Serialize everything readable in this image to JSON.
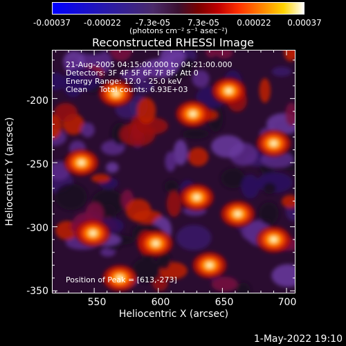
{
  "colorbar": {
    "ticks": [
      "-0.00037",
      "-0.00022",
      "-7.3e-05",
      "7.3e-05",
      "0.00022",
      "0.00037"
    ],
    "unit_label": "(photons cm⁻² s⁻¹ asec⁻²)"
  },
  "chart_data": {
    "type": "heatmap",
    "title": "Reconstructed RHESSI Image",
    "xlabel": "Heliocentric X (arcsec)",
    "ylabel": "Heliocentric Y (arcsec)",
    "xlim": [
      517,
      707
    ],
    "ylim": [
      -352,
      -162
    ],
    "x_ticks": [
      "550",
      "600",
      "650",
      "700"
    ],
    "y_ticks": [
      "-200",
      "-250",
      "-300",
      "-350"
    ],
    "peak_position": [
      613,
      -273
    ],
    "bright_sources": [
      {
        "x": 567,
        "y": -196
      },
      {
        "x": 655,
        "y": -194
      },
      {
        "x": 627,
        "y": -212
      },
      {
        "x": 540,
        "y": -250
      },
      {
        "x": 630,
        "y": -277
      },
      {
        "x": 662,
        "y": -290
      },
      {
        "x": 598,
        "y": -313
      },
      {
        "x": 690,
        "y": -310
      },
      {
        "x": 549,
        "y": -305
      },
      {
        "x": 640,
        "y": -330
      },
      {
        "x": 570,
        "y": -340
      },
      {
        "x": 690,
        "y": -235
      }
    ]
  },
  "info": {
    "line1": "21-Aug-2005 04:15:00.000 to 04:21:00.000",
    "line2": "Detectors: 3F 4F 5F 6F 7F 8F, Att 0",
    "line3": "Energy Range: 12.0 - 25.0 keV",
    "line4": "Clean     Total counts: 6.93E+03",
    "peak": "Position of Peak = [613,-273]"
  },
  "footer": "1-May-2022 19:10"
}
